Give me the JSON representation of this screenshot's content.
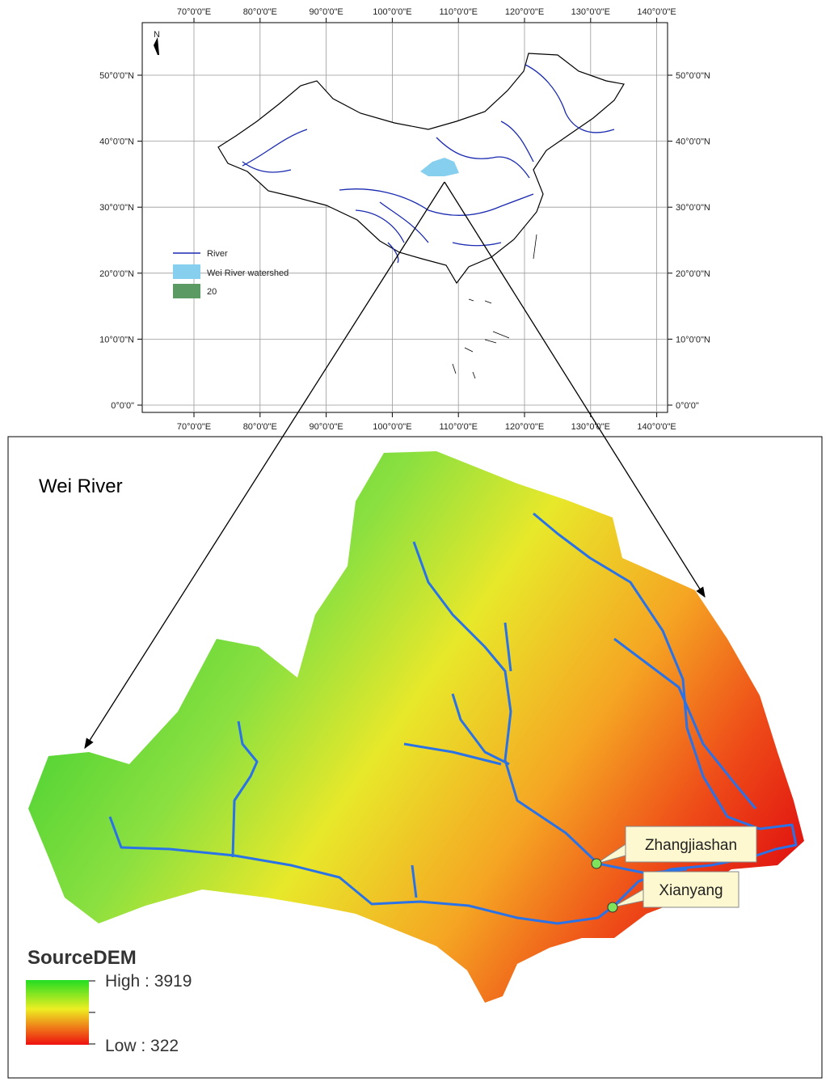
{
  "top_map": {
    "north": "N",
    "lon_labels": [
      "70°0'0\"E",
      "80°0'0\"E",
      "90°0'0\"E",
      "100°0'0\"E",
      "110°0'0\"E",
      "120°0'0\"E",
      "130°0'0\"E",
      "140°0'0\"E"
    ],
    "lat_labels": [
      "50°0'0\"N",
      "40°0'0\"N",
      "30°0'0\"N",
      "20°0'0\"N",
      "10°0'0\"N",
      "0°0'0\""
    ],
    "legend": [
      "River",
      "Wei River watershed",
      "20"
    ]
  },
  "detail_map": {
    "title": "Wei River",
    "stations": [
      "Zhangjiashan",
      "Xianyang"
    ],
    "legend": {
      "title": "SourceDEM",
      "high": "High : 3919",
      "low": "Low : 322"
    }
  }
}
